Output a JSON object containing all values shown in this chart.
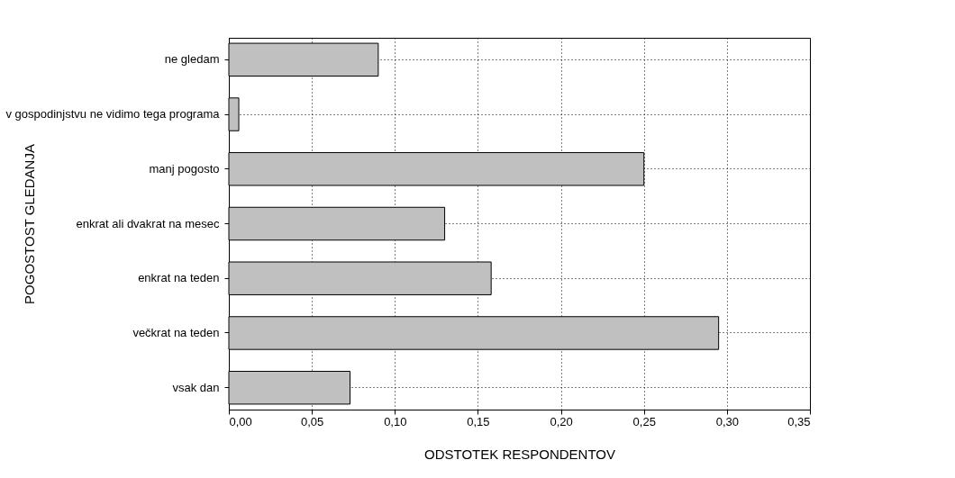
{
  "chart_data": {
    "type": "bar",
    "orientation": "horizontal",
    "xlabel": "ODSTOTEK RESPONDENTOV",
    "ylabel": "POGOSTOST GLEDANJA",
    "categories": [
      "ne gledam",
      "v gospodinjstvu ne vidimo tega programa",
      "manj pogosto",
      "enkrat ali dvakrat na mesec",
      "enkrat na teden",
      "večkrat na teden",
      "vsak dan"
    ],
    "values": [
      0.09,
      0.006,
      0.25,
      0.13,
      0.158,
      0.295,
      0.073
    ],
    "color": "#c0c0c0",
    "xlim": [
      0,
      0.35
    ],
    "xticks": [
      {
        "value": 0,
        "label": "0,00"
      },
      {
        "value": 0.05,
        "label": "0,05"
      },
      {
        "value": 0.1,
        "label": "0,10"
      },
      {
        "value": 0.15,
        "label": "0,15"
      },
      {
        "value": 0.2,
        "label": "0,20"
      },
      {
        "value": 0.25,
        "label": "0,25"
      },
      {
        "value": 0.3,
        "label": "0,30"
      },
      {
        "value": 0.35,
        "label": "0,35"
      }
    ],
    "grid": true
  }
}
